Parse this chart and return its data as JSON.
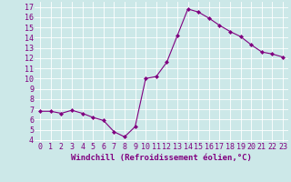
{
  "x": [
    0,
    1,
    2,
    3,
    4,
    5,
    6,
    7,
    8,
    9,
    10,
    11,
    12,
    13,
    14,
    15,
    16,
    17,
    18,
    19,
    20,
    21,
    22,
    23
  ],
  "y": [
    6.8,
    6.8,
    6.6,
    6.9,
    6.6,
    6.2,
    5.9,
    4.8,
    4.3,
    5.3,
    10.0,
    10.2,
    11.6,
    14.2,
    16.8,
    16.5,
    15.9,
    15.2,
    14.6,
    14.1,
    13.3,
    12.6,
    12.4,
    12.1
  ],
  "line_color": "#800080",
  "marker": "D",
  "marker_size": 2,
  "bg_color": "#cce8e8",
  "grid_color": "#ffffff",
  "xlabel": "Windchill (Refroidissement éolien,°C)",
  "ylabel_ticks": [
    4,
    5,
    6,
    7,
    8,
    9,
    10,
    11,
    12,
    13,
    14,
    15,
    16,
    17
  ],
  "xlim": [
    -0.5,
    23.5
  ],
  "ylim": [
    3.8,
    17.5
  ],
  "xlabel_fontsize": 6.5,
  "tick_fontsize": 6,
  "label_color": "#800080",
  "linewidth": 0.8
}
